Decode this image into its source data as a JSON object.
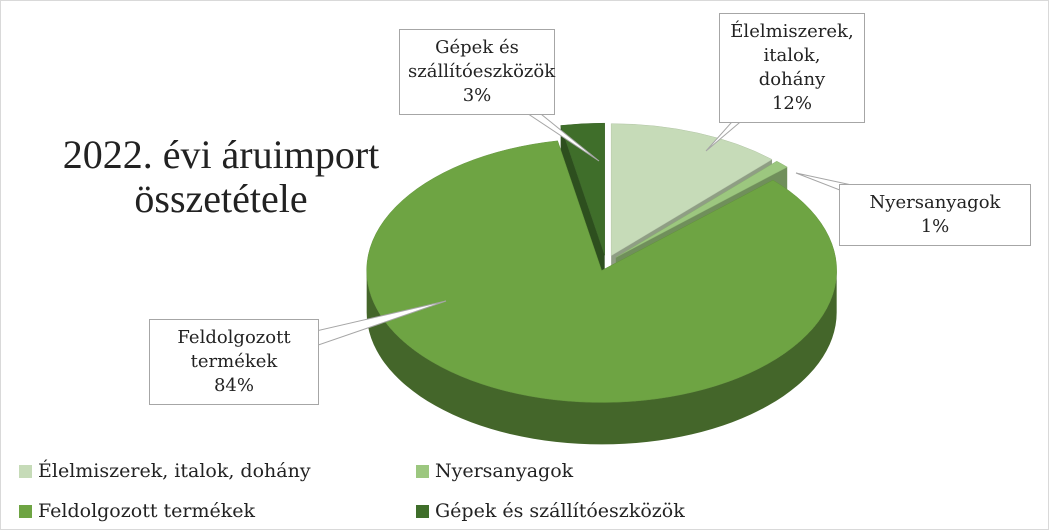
{
  "chart_data": {
    "type": "pie3d",
    "title": "2022. évi áruimport összetétele",
    "categories": [
      "Élelmiszerek, italok, dohány",
      "Nyersanyagok",
      "Feldolgozott termékek",
      "Gépek és szállítóeszközök"
    ],
    "values": [
      12,
      1,
      84,
      3
    ],
    "value_labels": [
      "12%",
      "1%",
      "84%",
      "3%"
    ],
    "colors": [
      "#c6dbb8",
      "#9cc77f",
      "#6ea443",
      "#3f6e2a"
    ],
    "legend": "bottom"
  }
}
